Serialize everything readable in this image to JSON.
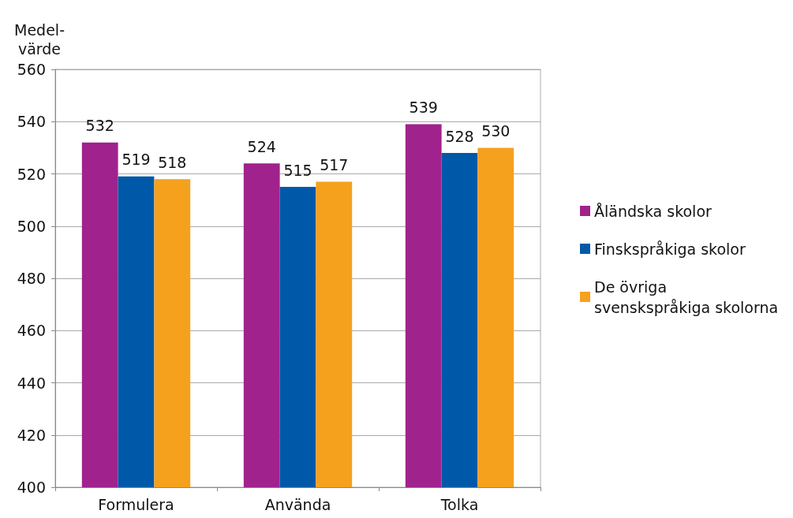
{
  "chart_data": {
    "type": "bar",
    "ylabel": "Medel-\nvärde",
    "categories": [
      "Formulera",
      "Använda",
      "Tolka"
    ],
    "series": [
      {
        "name": "Åländska skolor",
        "color": "#a0228c",
        "values": [
          532,
          524,
          539
        ]
      },
      {
        "name": "Finskspråkiga skolor",
        "color": "#0059a8",
        "values": [
          519,
          515,
          528
        ]
      },
      {
        "name": "De övriga svenskspråkiga skolorna",
        "color": "#f5a11e",
        "values": [
          518,
          517,
          530
        ]
      }
    ],
    "ylim": [
      400,
      560
    ],
    "yticks": [
      400,
      420,
      440,
      460,
      480,
      500,
      520,
      540,
      560
    ],
    "grid": "y",
    "legend": "right",
    "data_labels": true
  }
}
